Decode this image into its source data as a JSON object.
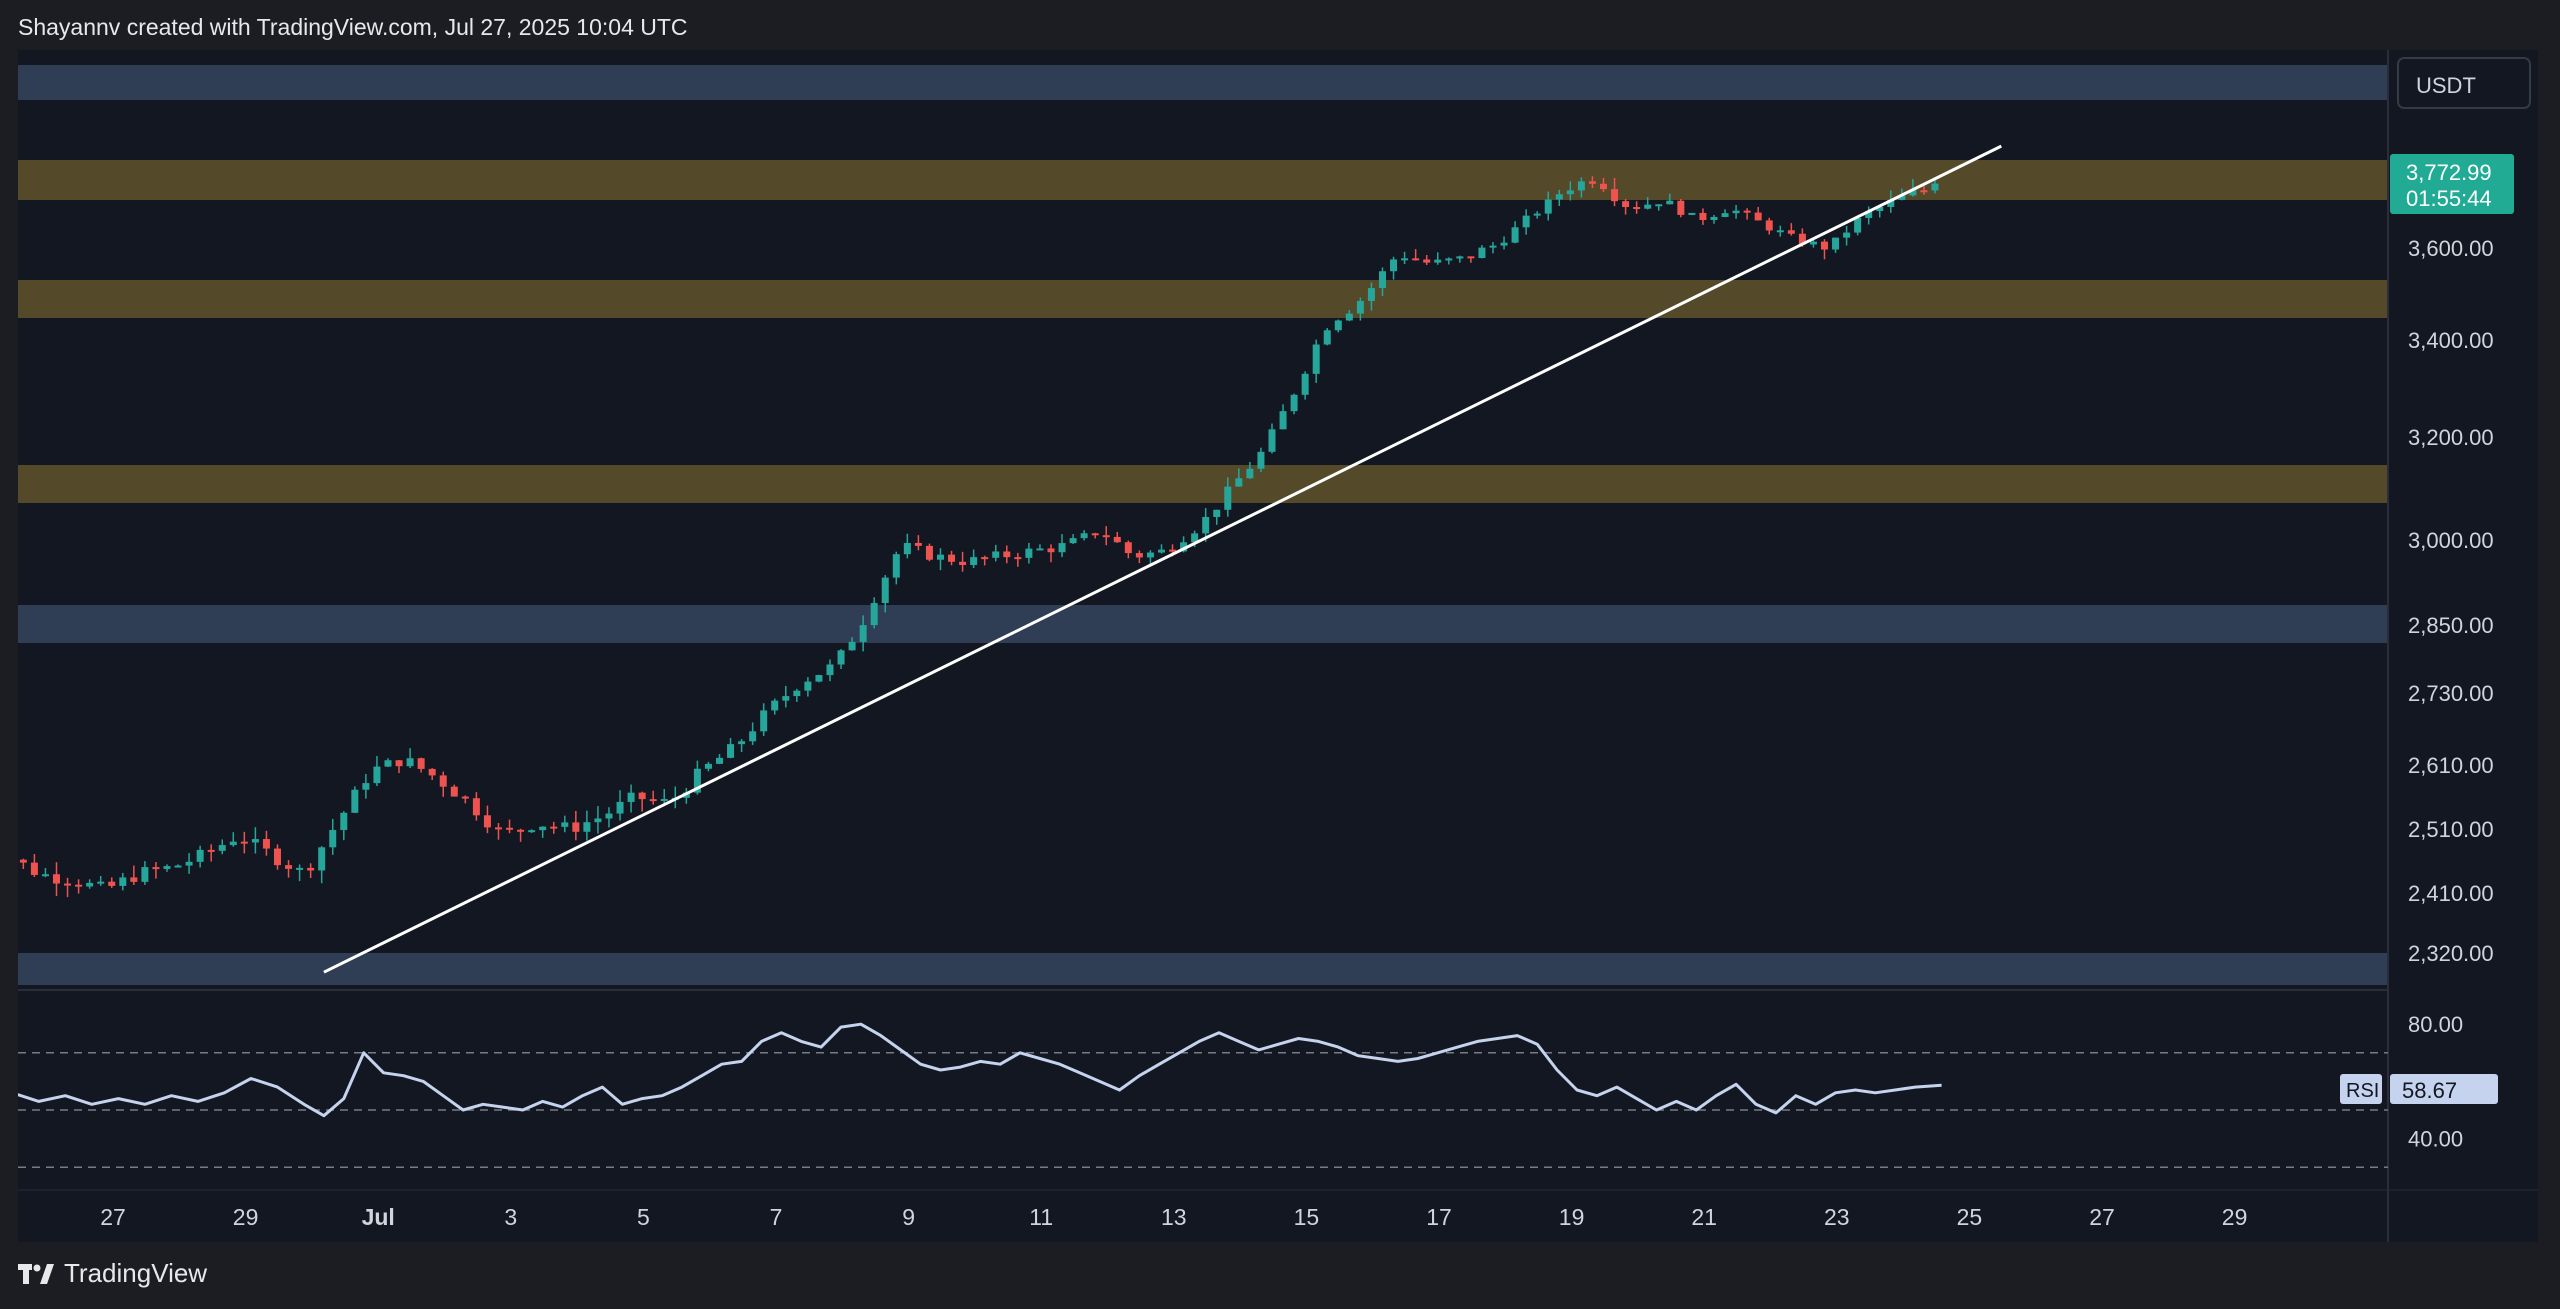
{
  "header": {
    "attribution": "Shayannv created with TradingView.com, Jul 27, 2025 10:04 UTC"
  },
  "footer": {
    "brand": "TradingView"
  },
  "colors": {
    "background": "#131722",
    "outer": "#1c1d22",
    "bull": "#26a69a",
    "bear": "#ef5350",
    "yellow_zone": "#5c4f2a",
    "blue_zone": "#35445e",
    "trendline": "#ffffff",
    "rsi_line": "#c5d3ef",
    "price_tag": "#22ab94"
  },
  "chart_data": [
    {
      "type": "candlestick",
      "currency": "USDT",
      "price_tag": {
        "value": "3,772.99",
        "countdown": "01:55:44"
      },
      "y_axis_ticks": [
        "3,600.00",
        "3,400.00",
        "3,200.00",
        "3,000.00",
        "2,850.00",
        "2,730.00",
        "2,610.00",
        "2,510.00",
        "2,410.00",
        "2,320.00"
      ],
      "x_axis_ticks": [
        "27",
        "29",
        "Jul",
        "3",
        "5",
        "7",
        "9",
        "11",
        "13",
        "15",
        "17",
        "19",
        "21",
        "23",
        "25",
        "27",
        "29"
      ],
      "zones": [
        {
          "color": "blue",
          "low": 3920,
          "high": 3990
        },
        {
          "color": "yellow",
          "low": 3720,
          "high": 3790
        },
        {
          "color": "yellow",
          "low": 3470,
          "high": 3540
        },
        {
          "color": "yellow",
          "low": 3080,
          "high": 3150
        },
        {
          "color": "blue",
          "low": 2820,
          "high": 2880
        },
        {
          "color": "blue",
          "low": 2270,
          "high": 2320
        }
      ],
      "trendline": {
        "from": {
          "day": 3.0,
          "price": 2290
        },
        "to": {
          "day": 28.3,
          "price": 3820
        }
      },
      "ohlc_close_path": [
        [
          -2.2,
          2420
        ],
        [
          -1.8,
          2470
        ],
        [
          -1.3,
          2440
        ],
        [
          -0.8,
          2430
        ],
        [
          -0.3,
          2415
        ],
        [
          0.2,
          2440
        ],
        [
          0.7,
          2450
        ],
        [
          1.2,
          2470
        ],
        [
          1.7,
          2500
        ],
        [
          2.2,
          2470
        ],
        [
          2.7,
          2440
        ],
        [
          3.2,
          2520
        ],
        [
          3.7,
          2600
        ],
        [
          4.2,
          2620
        ],
        [
          4.7,
          2590
        ],
        [
          5.2,
          2550
        ],
        [
          5.7,
          2500
        ],
        [
          6.2,
          2520
        ],
        [
          6.7,
          2510
        ],
        [
          7.2,
          2530
        ],
        [
          7.7,
          2560
        ],
        [
          8.2,
          2550
        ],
        [
          8.7,
          2600
        ],
        [
          9.2,
          2640
        ],
        [
          9.7,
          2700
        ],
        [
          10.2,
          2750
        ],
        [
          10.7,
          2780
        ],
        [
          11.2,
          2870
        ],
        [
          11.7,
          2990
        ],
        [
          12.2,
          2970
        ],
        [
          12.7,
          2960
        ],
        [
          13.2,
          2970
        ],
        [
          13.7,
          2980
        ],
        [
          14.2,
          2990
        ],
        [
          14.7,
          3020
        ],
        [
          15.2,
          2970
        ],
        [
          15.7,
          2980
        ],
        [
          16.2,
          3030
        ],
        [
          16.7,
          3110
        ],
        [
          17.2,
          3180
        ],
        [
          17.7,
          3310
        ],
        [
          18.2,
          3460
        ],
        [
          18.7,
          3510
        ],
        [
          19.2,
          3590
        ],
        [
          19.7,
          3570
        ],
        [
          20.2,
          3580
        ],
        [
          20.7,
          3610
        ],
        [
          21.2,
          3680
        ],
        [
          21.7,
          3740
        ],
        [
          22.2,
          3760
        ],
        [
          22.7,
          3700
        ],
        [
          23.2,
          3720
        ],
        [
          23.7,
          3670
        ],
        [
          24.2,
          3700
        ],
        [
          24.7,
          3660
        ],
        [
          25.2,
          3620
        ],
        [
          25.7,
          3600
        ],
        [
          26.2,
          3680
        ],
        [
          26.7,
          3720
        ],
        [
          27.2,
          3740
        ],
        [
          27.4,
          3773
        ]
      ]
    },
    {
      "type": "line",
      "name": "RSI",
      "current": "58.67",
      "y_axis_ticks": [
        "80.00",
        "40.00"
      ],
      "bands": [
        70,
        50,
        30
      ],
      "values": [
        [
          -2.5,
          55
        ],
        [
          -2.1,
          63
        ],
        [
          -1.7,
          56
        ],
        [
          -1.3,
          53
        ],
        [
          -0.9,
          55
        ],
        [
          -0.5,
          52
        ],
        [
          -0.1,
          54
        ],
        [
          0.3,
          52
        ],
        [
          0.7,
          55
        ],
        [
          1.1,
          53
        ],
        [
          1.5,
          56
        ],
        [
          1.9,
          61
        ],
        [
          2.3,
          58
        ],
        [
          2.7,
          52
        ],
        [
          3.0,
          48
        ],
        [
          3.3,
          54
        ],
        [
          3.6,
          70
        ],
        [
          3.9,
          63
        ],
        [
          4.2,
          62
        ],
        [
          4.5,
          60
        ],
        [
          4.8,
          55
        ],
        [
          5.1,
          50
        ],
        [
          5.4,
          52
        ],
        [
          5.7,
          51
        ],
        [
          6.0,
          50
        ],
        [
          6.3,
          53
        ],
        [
          6.6,
          51
        ],
        [
          6.9,
          55
        ],
        [
          7.2,
          58
        ],
        [
          7.5,
          52
        ],
        [
          7.8,
          54
        ],
        [
          8.1,
          55
        ],
        [
          8.4,
          58
        ],
        [
          8.7,
          62
        ],
        [
          9.0,
          66
        ],
        [
          9.3,
          67
        ],
        [
          9.6,
          74
        ],
        [
          9.9,
          77
        ],
        [
          10.2,
          74
        ],
        [
          10.5,
          72
        ],
        [
          10.8,
          79
        ],
        [
          11.1,
          80
        ],
        [
          11.4,
          76
        ],
        [
          11.7,
          71
        ],
        [
          12.0,
          66
        ],
        [
          12.3,
          64
        ],
        [
          12.6,
          65
        ],
        [
          12.9,
          67
        ],
        [
          13.2,
          66
        ],
        [
          13.5,
          70
        ],
        [
          13.8,
          68
        ],
        [
          14.1,
          66
        ],
        [
          14.4,
          63
        ],
        [
          14.7,
          60
        ],
        [
          15.0,
          57
        ],
        [
          15.3,
          62
        ],
        [
          15.6,
          66
        ],
        [
          15.9,
          70
        ],
        [
          16.2,
          74
        ],
        [
          16.5,
          77
        ],
        [
          16.8,
          74
        ],
        [
          17.1,
          71
        ],
        [
          17.4,
          73
        ],
        [
          17.7,
          75
        ],
        [
          18.0,
          74
        ],
        [
          18.3,
          72
        ],
        [
          18.6,
          69
        ],
        [
          18.9,
          68
        ],
        [
          19.2,
          67
        ],
        [
          19.5,
          68
        ],
        [
          19.8,
          70
        ],
        [
          20.1,
          72
        ],
        [
          20.4,
          74
        ],
        [
          20.7,
          75
        ],
        [
          21.0,
          76
        ],
        [
          21.3,
          73
        ],
        [
          21.6,
          64
        ],
        [
          21.9,
          57
        ],
        [
          22.2,
          55
        ],
        [
          22.5,
          58
        ],
        [
          22.8,
          54
        ],
        [
          23.1,
          50
        ],
        [
          23.4,
          53
        ],
        [
          23.7,
          50
        ],
        [
          24.0,
          55
        ],
        [
          24.3,
          59
        ],
        [
          24.6,
          52
        ],
        [
          24.9,
          49
        ],
        [
          25.2,
          55
        ],
        [
          25.5,
          52
        ],
        [
          25.8,
          56
        ],
        [
          26.1,
          57
        ],
        [
          26.4,
          56
        ],
        [
          26.7,
          57
        ],
        [
          27.0,
          58
        ],
        [
          27.4,
          58.67
        ]
      ]
    }
  ]
}
